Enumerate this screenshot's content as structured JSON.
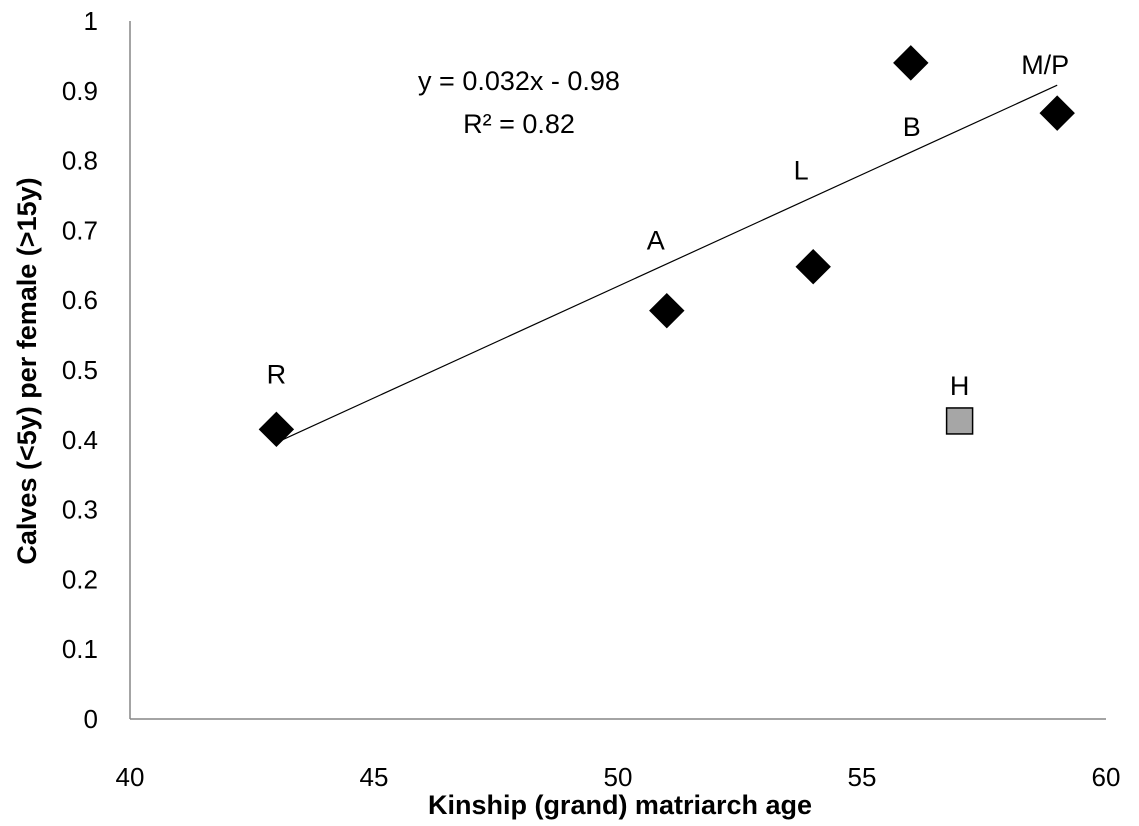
{
  "chart_data": {
    "type": "scatter",
    "title": "",
    "xlabel": "Kinship (grand)  matriarch age",
    "ylabel": "Calves (<5y)  per female (>15y)",
    "xlim": [
      40,
      60
    ],
    "ylim": [
      0,
      1
    ],
    "x_ticks": [
      40,
      45,
      50,
      55,
      60
    ],
    "y_ticks": [
      0,
      0.1,
      0.2,
      0.3,
      0.4,
      0.5,
      0.6,
      0.7,
      0.8,
      0.9,
      1
    ],
    "x_tick_labels": [
      "40",
      "45",
      "50",
      "55",
      "60"
    ],
    "y_tick_labels": [
      "0",
      "0.1",
      "0.2",
      "0.3",
      "0.4",
      "0.5",
      "0.6",
      "0.7",
      "0.8",
      "0.9",
      "1"
    ],
    "grid": false,
    "series": [
      {
        "marker": "diamond",
        "color": "#000000",
        "points": [
          {
            "label": "R",
            "x": 43,
            "y": 0.415
          },
          {
            "label": "A",
            "x": 51,
            "y": 0.585
          },
          {
            "label": "L",
            "x": 54,
            "y": 0.648
          },
          {
            "label": "B",
            "x": 56,
            "y": 0.94
          },
          {
            "label": "M/P",
            "x": 59,
            "y": 0.868
          }
        ]
      },
      {
        "marker": "square",
        "color": "#a6a6a6",
        "points": [
          {
            "label": "H",
            "x": 57,
            "y": 0.427
          }
        ]
      }
    ],
    "trendline": {
      "slope": 0.032,
      "intercept": -0.98,
      "x_range": [
        43,
        59
      ],
      "equation": "y = 0.032x - 0.98",
      "r_squared": "R² = 0.82"
    }
  }
}
